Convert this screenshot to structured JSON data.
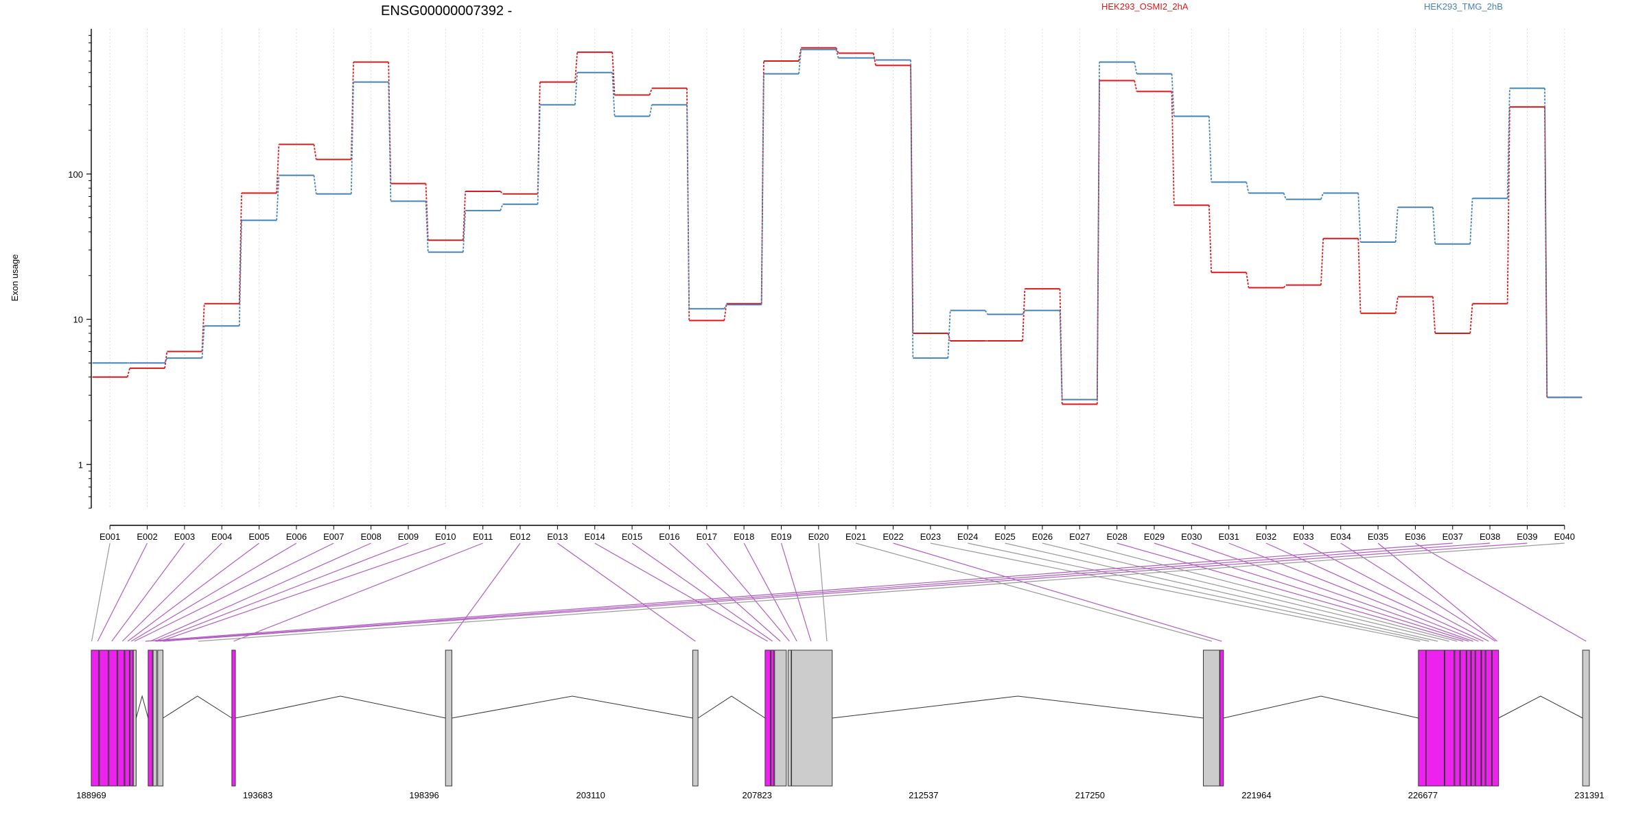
{
  "chart_data": {
    "type": "line",
    "title": "ENSG00000007392 -",
    "ylabel": "Exon usage",
    "y_scale": "log",
    "ylim": [
      0.5,
      1000
    ],
    "yticks": [
      1,
      10,
      100
    ],
    "grid": "vertical dotted lines at each exon",
    "legend_placement": "top",
    "categories": [
      "E001",
      "E002",
      "E003",
      "E004",
      "E005",
      "E006",
      "E007",
      "E008",
      "E009",
      "E010",
      "E011",
      "E012",
      "E013",
      "E014",
      "E015",
      "E016",
      "E017",
      "E018",
      "E019",
      "E020",
      "E021",
      "E022",
      "E023",
      "E024",
      "E025",
      "E026",
      "E027",
      "E028",
      "E029",
      "E030",
      "E031",
      "E032",
      "E033",
      "E034",
      "E035",
      "E036",
      "E037",
      "E038",
      "E039",
      "E040"
    ],
    "series": [
      {
        "name": "HEK293_OSMI2_2hA",
        "color": "#d7191c",
        "values": [
          4.0,
          4.6,
          6.0,
          12.8,
          74,
          160,
          126,
          590,
          86,
          35,
          76,
          73,
          430,
          690,
          350,
          390,
          9.8,
          12.8,
          600,
          740,
          680,
          560,
          8.0,
          7.1,
          7.1,
          16.2,
          2.6,
          440,
          370,
          61,
          21,
          16.5,
          17.2,
          36,
          11,
          14.3,
          8.0,
          12.8,
          290,
          2.9
        ]
      },
      {
        "name": "HEK293_TMG_2hB",
        "color": "#4682b4",
        "values": [
          5.0,
          5.0,
          5.4,
          9.0,
          48,
          98,
          73,
          430,
          65,
          29,
          56,
          62,
          300,
          500,
          250,
          300,
          11.8,
          12.6,
          490,
          720,
          630,
          610,
          5.4,
          11.5,
          10.8,
          11.5,
          2.8,
          590,
          490,
          250,
          88,
          74,
          67,
          74,
          34,
          59,
          33,
          68,
          390,
          2.9
        ]
      }
    ],
    "gene_coordinates": {
      "ticks": [
        "188969",
        "193683",
        "198396",
        "203110",
        "207823",
        "212537",
        "217250",
        "221964",
        "226677",
        "231391"
      ],
      "start": 188969,
      "end": 231391
    },
    "gene_model": {
      "exon_color_differential": "#ee22ee",
      "exon_color_other": "#cccccc",
      "exons": [
        {
          "start": 188969,
          "end": 189180,
          "diff": true
        },
        {
          "start": 189200,
          "end": 189450,
          "diff": true
        },
        {
          "start": 189470,
          "end": 189700,
          "diff": true
        },
        {
          "start": 189720,
          "end": 189900,
          "diff": true
        },
        {
          "start": 189920,
          "end": 190050,
          "diff": true
        },
        {
          "start": 190070,
          "end": 190150,
          "diff": true
        },
        {
          "start": 190160,
          "end": 190240,
          "diff": false
        },
        {
          "start": 190580,
          "end": 190700,
          "diff": true
        },
        {
          "start": 190720,
          "end": 190820,
          "diff": false
        },
        {
          "start": 190850,
          "end": 191000,
          "diff": false
        },
        {
          "start": 192950,
          "end": 193050,
          "diff": true
        },
        {
          "start": 199000,
          "end": 199180,
          "diff": false
        },
        {
          "start": 206000,
          "end": 206150,
          "diff": false
        },
        {
          "start": 208050,
          "end": 208200,
          "diff": true
        },
        {
          "start": 208220,
          "end": 208300,
          "diff": true
        },
        {
          "start": 208320,
          "end": 208650,
          "diff": false
        },
        {
          "start": 208700,
          "end": 208790,
          "diff": false
        },
        {
          "start": 208800,
          "end": 209950,
          "diff": false
        },
        {
          "start": 220460,
          "end": 220920,
          "diff": false
        },
        {
          "start": 220930,
          "end": 221030,
          "diff": true
        },
        {
          "start": 226550,
          "end": 226760,
          "diff": true
        },
        {
          "start": 226770,
          "end": 227280,
          "diff": true
        },
        {
          "start": 227300,
          "end": 227560,
          "diff": true
        },
        {
          "start": 227580,
          "end": 227720,
          "diff": true
        },
        {
          "start": 227740,
          "end": 227900,
          "diff": true
        },
        {
          "start": 227920,
          "end": 228030,
          "diff": true
        },
        {
          "start": 228050,
          "end": 228150,
          "diff": true
        },
        {
          "start": 228170,
          "end": 228320,
          "diff": true
        },
        {
          "start": 228340,
          "end": 228440,
          "diff": true
        },
        {
          "start": 228460,
          "end": 228620,
          "diff": true
        },
        {
          "start": 228640,
          "end": 228820,
          "diff": true
        },
        {
          "start": 231200,
          "end": 231391,
          "diff": false
        }
      ],
      "exon_positions": [
        188980,
        189150,
        189550,
        189850,
        190000,
        190100,
        190190,
        190640,
        190770,
        190920,
        193000,
        199090,
        206075,
        208120,
        208260,
        208480,
        208740,
        208950,
        209350,
        209800,
        220700,
        220980,
        226600,
        226850,
        227100,
        227420,
        227650,
        227820,
        227980,
        228100,
        228250,
        228390,
        228540,
        228730,
        228780,
        231300,
        190500,
        190800,
        191000,
        192000
      ],
      "exon_line_color": [
        0,
        1,
        1,
        1,
        1,
        1,
        1,
        1,
        1,
        1,
        1,
        1,
        1,
        1,
        1,
        1,
        1,
        1,
        1,
        0,
        0,
        1,
        0,
        0,
        0,
        0,
        0,
        1,
        1,
        1,
        1,
        1,
        1,
        1,
        1,
        1,
        1,
        1,
        1,
        0
      ]
    }
  }
}
